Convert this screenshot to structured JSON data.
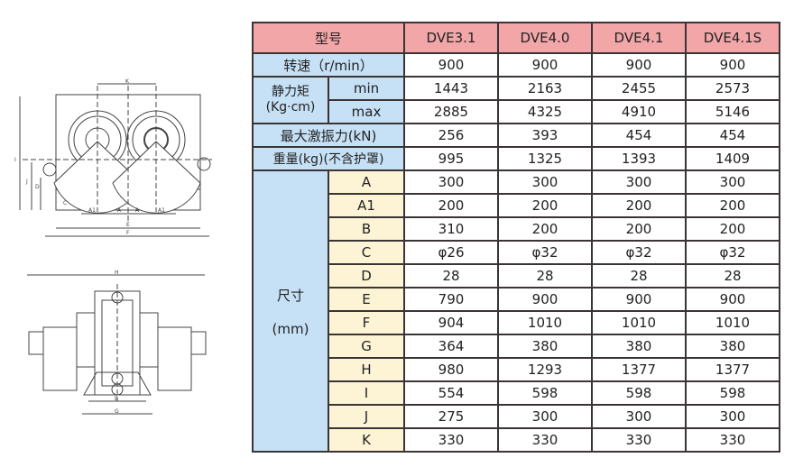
{
  "table": {
    "model_label": "型号",
    "models": [
      "DVE3.1",
      "DVE4.0",
      "DVE4.1",
      "DVE4.1S"
    ],
    "speed": {
      "label": "转速（r/min）",
      "values": [
        "900",
        "900",
        "900",
        "900"
      ]
    },
    "static_moment": {
      "label": "静力矩",
      "unit": "(Kg·cm)",
      "min": {
        "label": "min",
        "values": [
          "1443",
          "2163",
          "2455",
          "2573"
        ]
      },
      "max": {
        "label": "max",
        "values": [
          "2885",
          "4325",
          "4910",
          "5146"
        ]
      }
    },
    "max_force": {
      "label": "最大激振力(kN)",
      "values": [
        "256",
        "393",
        "454",
        "454"
      ]
    },
    "weight": {
      "label": "重量(kg)(不含护罩)",
      "values": [
        "995",
        "1325",
        "1393",
        "1409"
      ]
    },
    "dimensions": {
      "label": "尺寸",
      "unit": "(mm)",
      "rows": [
        {
          "key": "A",
          "values": [
            "300",
            "300",
            "300",
            "300"
          ]
        },
        {
          "key": "A1",
          "values": [
            "200",
            "200",
            "200",
            "200"
          ]
        },
        {
          "key": "B",
          "values": [
            "310",
            "200",
            "200",
            "200"
          ]
        },
        {
          "key": "C",
          "values": [
            "φ26",
            "φ32",
            "φ32",
            "φ32"
          ]
        },
        {
          "key": "D",
          "values": [
            "28",
            "28",
            "28",
            "28"
          ]
        },
        {
          "key": "E",
          "values": [
            "790",
            "900",
            "900",
            "900"
          ]
        },
        {
          "key": "F",
          "values": [
            "904",
            "1010",
            "1010",
            "1010"
          ]
        },
        {
          "key": "G",
          "values": [
            "364",
            "380",
            "380",
            "380"
          ]
        },
        {
          "key": "H",
          "values": [
            "980",
            "1293",
            "1377",
            "1377"
          ]
        },
        {
          "key": "I",
          "values": [
            "554",
            "598",
            "598",
            "598"
          ]
        },
        {
          "key": "J",
          "values": [
            "275",
            "300",
            "300",
            "300"
          ]
        },
        {
          "key": "K",
          "values": [
            "330",
            "330",
            "330",
            "330"
          ]
        }
      ]
    }
  },
  "drawing_labels": {
    "front": [
      "K",
      "A1",
      "A",
      "A",
      "A1",
      "E",
      "F",
      "C",
      "I",
      "J",
      "D"
    ],
    "side": [
      "H",
      "B",
      "G"
    ]
  },
  "colors": {
    "header_blue": "#c6e0f5",
    "model_pink": "#f3a6a8",
    "dim_yellow": "#fdf4d6",
    "border": "#3b3434"
  }
}
